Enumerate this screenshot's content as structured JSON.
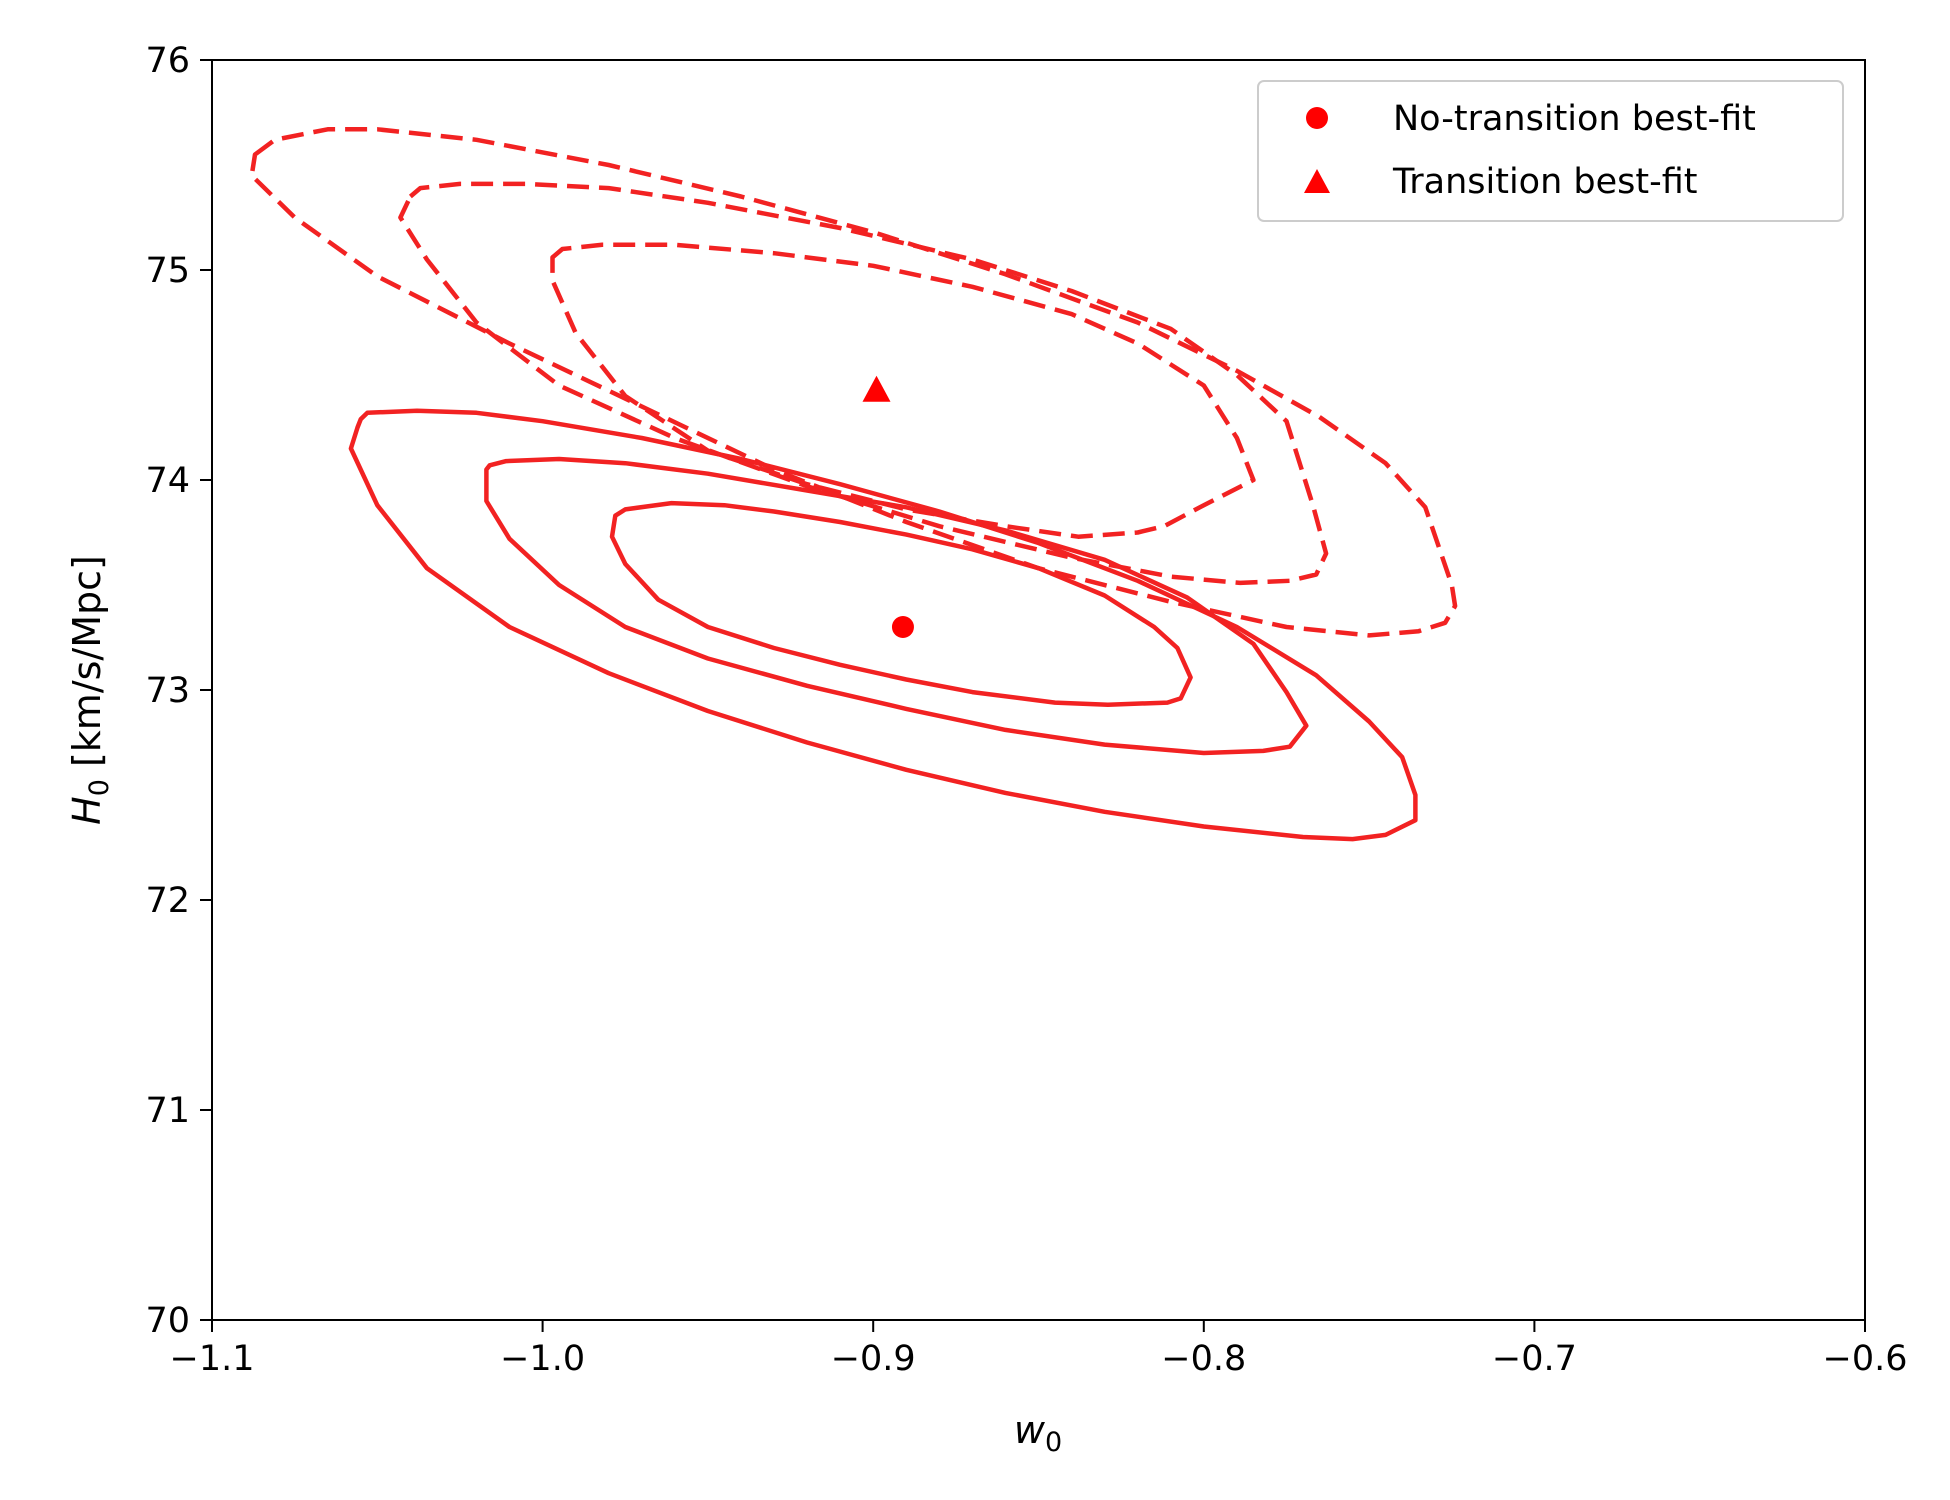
{
  "chart_data": {
    "type": "contour",
    "title": "",
    "xlabel_base": "w",
    "xlabel_sub": "0",
    "ylabel_base": "H",
    "ylabel_sub": "0",
    "ylabel_unit": " [km/s/Mpc]",
    "xlim": [
      -1.1,
      -0.6
    ],
    "ylim": [
      70,
      76
    ],
    "x_ticks": [
      -1.1,
      -1.0,
      -0.9,
      -0.8,
      -0.7,
      -0.6
    ],
    "x_tick_labels": [
      "−1.1",
      "−1.0",
      "−0.9",
      "−0.8",
      "−0.7",
      "−0.6"
    ],
    "y_ticks": [
      70,
      71,
      72,
      73,
      74,
      75,
      76
    ],
    "y_tick_labels": [
      "70",
      "71",
      "72",
      "73",
      "74",
      "75",
      "76"
    ],
    "grid": false,
    "legend_position": "top-right",
    "series": [
      {
        "name": "No-transition best-fit",
        "marker": "circle",
        "color": "#ff0000",
        "best_fit": {
          "x": -0.891,
          "y": 73.3
        },
        "contour_style": "solid",
        "contour_color": "#f22222",
        "contours": [
          [
            [
              -0.978,
              73.83
            ],
            [
              -0.975,
              73.86
            ],
            [
              -0.961,
              73.89
            ],
            [
              -0.945,
              73.88
            ],
            [
              -0.93,
              73.85
            ],
            [
              -0.91,
              73.8
            ],
            [
              -0.89,
              73.74
            ],
            [
              -0.87,
              73.67
            ],
            [
              -0.85,
              73.58
            ],
            [
              -0.83,
              73.45
            ],
            [
              -0.815,
              73.3
            ],
            [
              -0.808,
              73.2
            ],
            [
              -0.804,
              73.06
            ],
            [
              -0.807,
              72.96
            ],
            [
              -0.811,
              72.94
            ],
            [
              -0.829,
              72.93
            ],
            [
              -0.845,
              72.94
            ],
            [
              -0.87,
              72.99
            ],
            [
              -0.89,
              73.05
            ],
            [
              -0.91,
              73.12
            ],
            [
              -0.93,
              73.2
            ],
            [
              -0.95,
              73.3
            ],
            [
              -0.965,
              73.43
            ],
            [
              -0.975,
              73.6
            ],
            [
              -0.979,
              73.73
            ]
          ],
          [
            [
              -1.017,
              74.05
            ],
            [
              -1.016,
              74.07
            ],
            [
              -1.011,
              74.09
            ],
            [
              -0.995,
              74.1
            ],
            [
              -0.975,
              74.08
            ],
            [
              -0.95,
              74.03
            ],
            [
              -0.92,
              73.95
            ],
            [
              -0.89,
              73.87
            ],
            [
              -0.86,
              73.76
            ],
            [
              -0.83,
              73.62
            ],
            [
              -0.805,
              73.44
            ],
            [
              -0.785,
              73.22
            ],
            [
              -0.775,
              72.99
            ],
            [
              -0.769,
              72.83
            ],
            [
              -0.774,
              72.73
            ],
            [
              -0.782,
              72.71
            ],
            [
              -0.8,
              72.7
            ],
            [
              -0.83,
              72.74
            ],
            [
              -0.86,
              72.81
            ],
            [
              -0.89,
              72.91
            ],
            [
              -0.92,
              73.02
            ],
            [
              -0.95,
              73.15
            ],
            [
              -0.975,
              73.3
            ],
            [
              -0.995,
              73.5
            ],
            [
              -1.01,
              73.72
            ],
            [
              -1.017,
              73.9
            ]
          ],
          [
            [
              -1.056,
              74.25
            ],
            [
              -1.055,
              74.29
            ],
            [
              -1.053,
              74.32
            ],
            [
              -1.038,
              74.33
            ],
            [
              -1.02,
              74.32
            ],
            [
              -1.0,
              74.28
            ],
            [
              -0.97,
              74.2
            ],
            [
              -0.94,
              74.1
            ],
            [
              -0.91,
              73.98
            ],
            [
              -0.88,
              73.85
            ],
            [
              -0.85,
              73.7
            ],
            [
              -0.82,
              73.52
            ],
            [
              -0.79,
              73.3
            ],
            [
              -0.766,
              73.07
            ],
            [
              -0.75,
              72.85
            ],
            [
              -0.74,
              72.68
            ],
            [
              -0.736,
              72.5
            ],
            [
              -0.736,
              72.38
            ],
            [
              -0.745,
              72.31
            ],
            [
              -0.755,
              72.29
            ],
            [
              -0.77,
              72.3
            ],
            [
              -0.8,
              72.35
            ],
            [
              -0.83,
              72.42
            ],
            [
              -0.86,
              72.51
            ],
            [
              -0.89,
              72.62
            ],
            [
              -0.92,
              72.75
            ],
            [
              -0.95,
              72.9
            ],
            [
              -0.98,
              73.08
            ],
            [
              -1.01,
              73.3
            ],
            [
              -1.035,
              73.58
            ],
            [
              -1.05,
              73.88
            ],
            [
              -1.058,
              74.15
            ]
          ]
        ]
      },
      {
        "name": "Transition best-fit",
        "marker": "triangle",
        "color": "#ff0000",
        "best_fit": {
          "x": -0.899,
          "y": 74.43
        },
        "contour_style": "dashed",
        "contour_color": "#f22222",
        "contours": [
          [
            [
              -0.997,
              75.06
            ],
            [
              -0.994,
              75.1
            ],
            [
              -0.982,
              75.12
            ],
            [
              -0.96,
              75.12
            ],
            [
              -0.93,
              75.08
            ],
            [
              -0.9,
              75.02
            ],
            [
              -0.87,
              74.92
            ],
            [
              -0.84,
              74.79
            ],
            [
              -0.82,
              74.65
            ],
            [
              -0.8,
              74.45
            ],
            [
              -0.79,
              74.2
            ],
            [
              -0.785,
              74.0
            ],
            [
              -0.8,
              73.88
            ],
            [
              -0.812,
              73.78
            ],
            [
              -0.82,
              73.75
            ],
            [
              -0.838,
              73.73
            ],
            [
              -0.86,
              73.78
            ],
            [
              -0.89,
              73.86
            ],
            [
              -0.92,
              73.98
            ],
            [
              -0.95,
              74.14
            ],
            [
              -0.975,
              74.4
            ],
            [
              -0.99,
              74.7
            ],
            [
              -0.997,
              74.95
            ]
          ],
          [
            [
              -1.04,
              75.35
            ],
            [
              -1.037,
              75.39
            ],
            [
              -1.025,
              75.41
            ],
            [
              -1.005,
              75.41
            ],
            [
              -0.98,
              75.39
            ],
            [
              -0.95,
              75.32
            ],
            [
              -0.91,
              75.2
            ],
            [
              -0.87,
              75.05
            ],
            [
              -0.84,
              74.9
            ],
            [
              -0.81,
              74.72
            ],
            [
              -0.79,
              74.5
            ],
            [
              -0.775,
              74.28
            ],
            [
              -0.767,
              73.88
            ],
            [
              -0.763,
              73.65
            ],
            [
              -0.766,
              73.55
            ],
            [
              -0.774,
              73.52
            ],
            [
              -0.789,
              73.51
            ],
            [
              -0.81,
              73.54
            ],
            [
              -0.84,
              73.63
            ],
            [
              -0.88,
              73.78
            ],
            [
              -0.92,
              73.97
            ],
            [
              -0.96,
              74.2
            ],
            [
              -0.995,
              74.45
            ],
            [
              -1.02,
              74.75
            ],
            [
              -1.035,
              75.05
            ],
            [
              -1.043,
              75.25
            ]
          ],
          [
            [
              -1.087,
              75.55
            ],
            [
              -1.081,
              75.62
            ],
            [
              -1.065,
              75.67
            ],
            [
              -1.05,
              75.67
            ],
            [
              -1.02,
              75.62
            ],
            [
              -0.98,
              75.5
            ],
            [
              -0.94,
              75.35
            ],
            [
              -0.9,
              75.18
            ],
            [
              -0.86,
              74.98
            ],
            [
              -0.82,
              74.75
            ],
            [
              -0.79,
              74.52
            ],
            [
              -0.765,
              74.3
            ],
            [
              -0.745,
              74.08
            ],
            [
              -0.733,
              73.87
            ],
            [
              -0.725,
              73.5
            ],
            [
              -0.724,
              73.4
            ],
            [
              -0.727,
              73.32
            ],
            [
              -0.735,
              73.28
            ],
            [
              -0.75,
              73.26
            ],
            [
              -0.775,
              73.3
            ],
            [
              -0.81,
              73.42
            ],
            [
              -0.85,
              73.58
            ],
            [
              -0.89,
              73.8
            ],
            [
              -0.93,
              74.05
            ],
            [
              -0.97,
              74.35
            ],
            [
              -1.01,
              74.65
            ],
            [
              -1.05,
              74.97
            ],
            [
              -1.075,
              75.25
            ],
            [
              -1.088,
              75.45
            ]
          ]
        ]
      }
    ]
  }
}
